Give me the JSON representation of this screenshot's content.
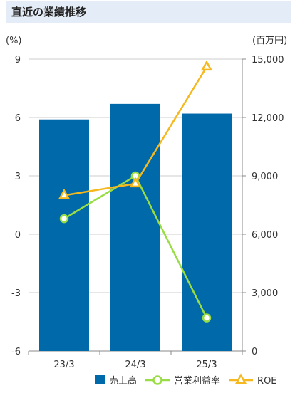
{
  "header": {
    "title": "直近の業績推移"
  },
  "chart_data": {
    "type": "bar",
    "categories": [
      "23/3",
      "24/3",
      "25/3"
    ],
    "left_axis": {
      "unit": "(%)",
      "ylim": [
        -6,
        9
      ],
      "ticks": [
        "9",
        "6",
        "3",
        "0",
        "-3",
        "-6"
      ]
    },
    "right_axis": {
      "unit": "(百万円)",
      "ylim": [
        0,
        15000
      ],
      "ticks": [
        "15,000",
        "12,000",
        "9,000",
        "6,000",
        "3,000",
        "0"
      ]
    },
    "series": [
      {
        "name": "売上高",
        "type": "bar",
        "axis": "right",
        "color": "#0069aa",
        "values": [
          11900,
          12700,
          12200
        ]
      },
      {
        "name": "営業利益率",
        "type": "line",
        "axis": "left",
        "marker": "circle",
        "color": "#99dd44",
        "values": [
          0.8,
          3.0,
          -4.3
        ]
      },
      {
        "name": "ROE",
        "type": "line",
        "axis": "left",
        "marker": "triangle",
        "color": "#f5b81e",
        "values": [
          2.0,
          2.6,
          8.6
        ]
      }
    ],
    "grid": true,
    "legend_position": "bottom-right"
  }
}
